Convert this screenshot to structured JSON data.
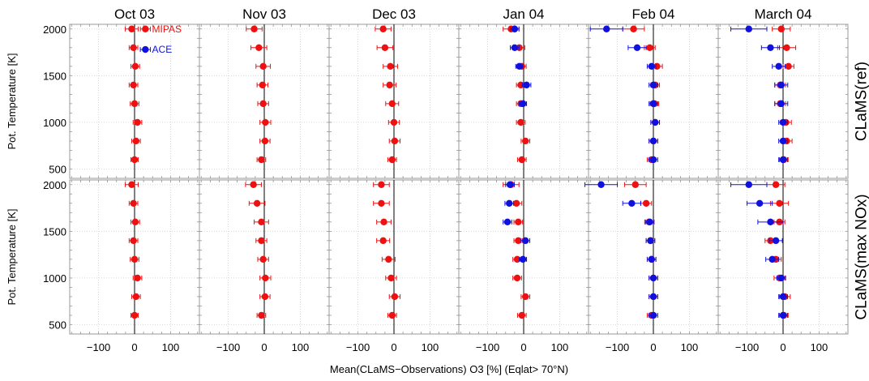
{
  "chart_data": {
    "type": "scatter",
    "columns": [
      "Oct 03",
      "Nov 03",
      "Dec 03",
      "Jan 04",
      "Feb 04",
      "March 04"
    ],
    "rows": [
      "CLaMS(ref)",
      "CLaMS(max NOx)"
    ],
    "ylabel": "Pot. Temperature [K]",
    "xlabel": "Mean(CLaMS−Observations) O3 [%]     (Eqlat> 70°N)",
    "xlim": [
      -180,
      180
    ],
    "ylim": [
      400,
      2050
    ],
    "xticks": [
      -100,
      0,
      100
    ],
    "xtick_labels": [
      "−100",
      "0",
      "100"
    ],
    "yticks": [
      500,
      1000,
      1500,
      2000
    ],
    "ytick_labels": [
      "500",
      "1000",
      "1500",
      "2000"
    ],
    "grid": true,
    "series_colors": {
      "MIPAS": "#ee1111",
      "ACE": "#1111dd"
    },
    "legend": [
      {
        "name": "MIPAS",
        "color": "#ee1111"
      },
      {
        "name": "ACE",
        "color": "#1111dd"
      }
    ],
    "legend_placement": "top-right of first panel",
    "levels": [
      2000,
      1800,
      1600,
      1400,
      1200,
      1000,
      800,
      600,
      500
    ],
    "panels": [
      [
        {
          "mipas": [
            [
              -8,
              18
            ],
            [
              -3,
              12
            ],
            [
              2,
              12
            ],
            [
              -3,
              12
            ],
            [
              0,
              12
            ],
            [
              8,
              12
            ],
            [
              4,
              12
            ],
            [
              0,
              10
            ]
          ],
          "ace": []
        },
        {
          "mipas": [
            [
              -28,
              22
            ],
            [
              -15,
              22
            ],
            [
              -3,
              20
            ],
            [
              -5,
              15
            ],
            [
              -3,
              15
            ],
            [
              3,
              15
            ],
            [
              2,
              14
            ],
            [
              -8,
              12
            ]
          ],
          "ace": []
        },
        {
          "mipas": [
            [
              -30,
              22
            ],
            [
              -25,
              22
            ],
            [
              -10,
              20
            ],
            [
              -12,
              18
            ],
            [
              -5,
              18
            ],
            [
              0,
              15
            ],
            [
              2,
              15
            ],
            [
              -5,
              12
            ]
          ],
          "ace": []
        },
        {
          "mipas": [
            [
              -35,
              22
            ],
            [
              -12,
              15
            ],
            [
              -5,
              12
            ],
            [
              -8,
              12
            ],
            [
              -8,
              12
            ],
            [
              -8,
              12
            ],
            [
              5,
              12
            ],
            [
              -5,
              12
            ]
          ],
          "ace": [
            [
              -25,
              12
            ],
            [
              -25,
              12
            ],
            [
              -12,
              10
            ],
            [
              8,
              12
            ],
            [
              -2,
              10
            ]
          ]
        },
        {
          "mipas": [
            [
              -55,
              30
            ],
            [
              -10,
              15
            ],
            [
              10,
              15
            ],
            [
              5,
              12
            ],
            [
              3,
              12
            ],
            [
              5,
              12
            ],
            [
              0,
              12
            ],
            [
              -5,
              12
            ]
          ],
          "ace": [
            [
              -130,
              45
            ],
            [
              -45,
              25
            ],
            [
              -5,
              12
            ],
            [
              0,
              12
            ],
            [
              0,
              12
            ],
            [
              5,
              12
            ],
            [
              0,
              12
            ],
            [
              0,
              12
            ]
          ]
        },
        {
          "mipas": [
            [
              -5,
              25
            ],
            [
              10,
              25
            ],
            [
              15,
              15
            ],
            [
              -8,
              15
            ],
            [
              -8,
              15
            ],
            [
              8,
              15
            ],
            [
              10,
              15
            ],
            [
              2,
              12
            ]
          ],
          "ace": [
            [
              -95,
              50
            ],
            [
              -35,
              25
            ],
            [
              -12,
              18
            ],
            [
              -5,
              18
            ],
            [
              -5,
              18
            ],
            [
              0,
              12
            ],
            [
              0,
              12
            ],
            [
              0,
              12
            ]
          ]
        }
      ],
      [
        {
          "mipas": [
            [
              -8,
              18
            ],
            [
              -3,
              12
            ],
            [
              2,
              12
            ],
            [
              -3,
              12
            ],
            [
              0,
              12
            ],
            [
              8,
              12
            ],
            [
              4,
              12
            ],
            [
              0,
              10
            ]
          ],
          "ace": []
        },
        {
          "mipas": [
            [
              -30,
              22
            ],
            [
              -20,
              22
            ],
            [
              -8,
              20
            ],
            [
              -8,
              15
            ],
            [
              -3,
              15
            ],
            [
              3,
              15
            ],
            [
              2,
              14
            ],
            [
              -8,
              12
            ]
          ],
          "ace": []
        },
        {
          "mipas": [
            [
              -35,
              22
            ],
            [
              -35,
              22
            ],
            [
              -28,
              20
            ],
            [
              -30,
              18
            ],
            [
              -15,
              18
            ],
            [
              -8,
              15
            ],
            [
              2,
              15
            ],
            [
              -5,
              12
            ]
          ],
          "ace": []
        },
        {
          "mipas": [
            [
              -35,
              22
            ],
            [
              -20,
              15
            ],
            [
              -15,
              12
            ],
            [
              -15,
              12
            ],
            [
              -18,
              12
            ],
            [
              -18,
              12
            ],
            [
              5,
              12
            ],
            [
              -5,
              12
            ]
          ],
          "ace": [
            [
              -38,
              12
            ],
            [
              -40,
              12
            ],
            [
              -45,
              12
            ],
            [
              5,
              12
            ],
            [
              -2,
              10
            ]
          ]
        },
        {
          "mipas": [
            [
              -50,
              30
            ],
            [
              -20,
              15
            ],
            [
              -12,
              12
            ],
            [
              -8,
              12
            ],
            [
              -5,
              12
            ],
            [
              0,
              12
            ],
            [
              0,
              12
            ],
            [
              -5,
              12
            ]
          ],
          "ace": [
            [
              -145,
              45
            ],
            [
              -60,
              25
            ],
            [
              -10,
              12
            ],
            [
              -8,
              12
            ],
            [
              -5,
              12
            ],
            [
              0,
              12
            ],
            [
              0,
              12
            ],
            [
              0,
              12
            ]
          ]
        },
        {
          "mipas": [
            [
              -20,
              25
            ],
            [
              -10,
              25
            ],
            [
              -10,
              15
            ],
            [
              -35,
              15
            ],
            [
              -20,
              15
            ],
            [
              -10,
              15
            ],
            [
              5,
              15
            ],
            [
              2,
              12
            ]
          ],
          "ace": [
            [
              -95,
              50
            ],
            [
              -65,
              35
            ],
            [
              -35,
              35
            ],
            [
              -20,
              18
            ],
            [
              -30,
              18
            ],
            [
              -5,
              12
            ],
            [
              0,
              12
            ],
            [
              0,
              12
            ]
          ]
        }
      ]
    ]
  }
}
